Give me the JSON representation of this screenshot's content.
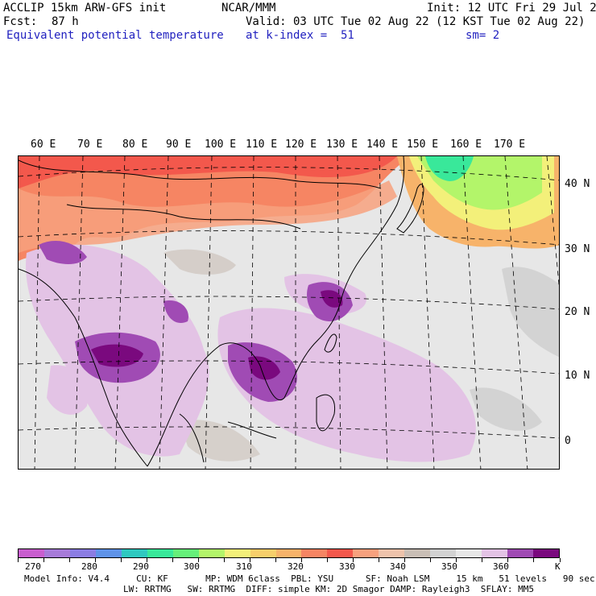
{
  "header": {
    "model_line": "ACCLIP 15km ARW-GFS init",
    "org": "NCAR/MMM",
    "init": "Init: 12 UTC Fri 29 Jul 22",
    "fcst_label": "Fcst:",
    "fcst_value": "87 h",
    "valid": "Valid: 03 UTC Tue 02 Aug 22 (12 KST Tue 02 Aug 22)",
    "field": "Equivalent potential temperature",
    "level": "at k-index =  51",
    "smooth": "sm= 2"
  },
  "map": {
    "lon_labels": [
      "60 E",
      "70 E",
      "80 E",
      "90 E",
      "100 E",
      "110 E",
      "120 E",
      "130 E",
      "140 E",
      "150 E",
      "160 E",
      "170 E"
    ],
    "lat_labels": [
      "40 N",
      "30 N",
      "20 N",
      "10 N",
      "0"
    ]
  },
  "colorbar": {
    "colors": [
      "#c95ecf",
      "#a77bd9",
      "#8b7de3",
      "#5f93e8",
      "#2fc9c0",
      "#39e89a",
      "#66f07a",
      "#b3f56a",
      "#f3f07a",
      "#f7cf6b",
      "#f7b36a",
      "#f68563",
      "#f3584c",
      "#f7a17e",
      "#eec3ab",
      "#c9beb5",
      "#d2d2d2",
      "#e7e7e7",
      "#e3c3e5",
      "#a04bb4",
      "#7a097e"
    ],
    "tick_labels": [
      "270",
      "280",
      "290",
      "300",
      "310",
      "320",
      "330",
      "340",
      "350",
      "360",
      "K"
    ],
    "unit": "K"
  },
  "footer": {
    "line1": "Model Info: V4.4     CU: KF       MP: WDM 6class  PBL: YSU      SF: Noah LSM     15 km   51 levels   90 sec",
    "line2": "LW: RRTMG   SW: RRTMG  DIFF: simple KM: 2D Smagor DAMP: Rayleigh3  SFLAY: MM5"
  }
}
